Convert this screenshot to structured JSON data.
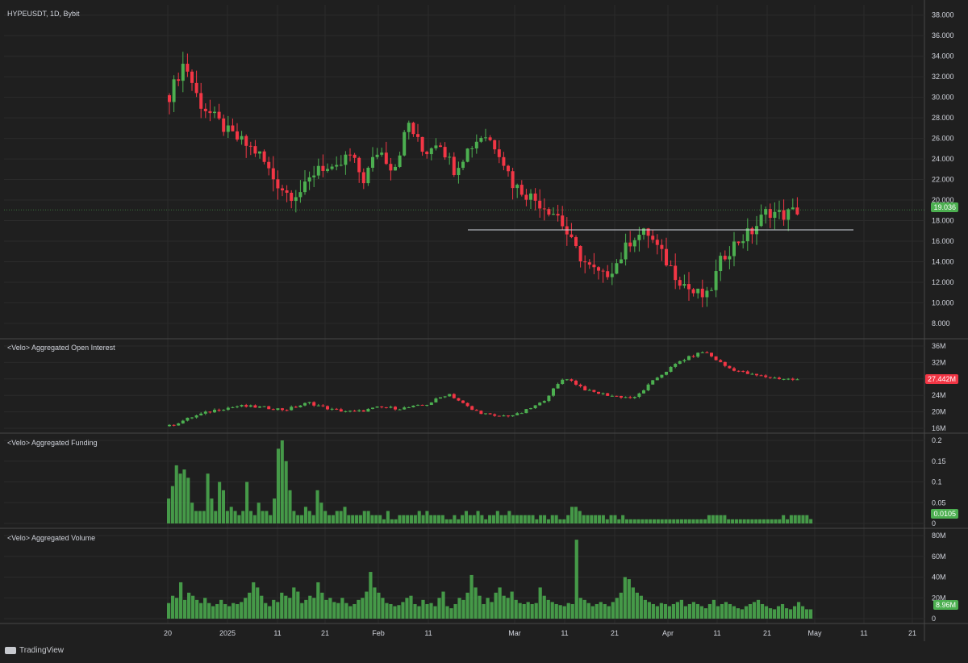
{
  "header": {
    "symbol_title": "HYPEUSDT, 1D, Bybit"
  },
  "watermark": {
    "label": "TradingView"
  },
  "colors": {
    "up": "#4caf50",
    "down": "#f23645",
    "bg": "#1f1f1f",
    "grid": "#2b2b2b",
    "text": "#d1d4dc",
    "separator": "#474747",
    "level": "#d1d4dc"
  },
  "x_axis": {
    "labels": [
      "20",
      "2025",
      "11",
      "21",
      "Feb",
      "11",
      "Mar",
      "11",
      "21",
      "Apr",
      "11",
      "21",
      "May",
      "11",
      "21"
    ]
  },
  "chart_data": [
    {
      "name": "price",
      "type": "candlestick",
      "title": "HYPEUSDT, 1D, Bybit",
      "ylim": [
        6.5,
        39.0
      ],
      "y_ticks": [
        "38.000",
        "36.000",
        "34.000",
        "32.000",
        "30.000",
        "28.000",
        "26.000",
        "24.000",
        "22.000",
        "20.000",
        "18.000",
        "16.000",
        "14.000",
        "12.000",
        "10.000",
        "8.000"
      ],
      "last_value": "19.036",
      "horizontal_level": 17.1,
      "grid": true,
      "series": [
        {
          "name": "price_anchors",
          "values": [
            30.2,
            33.5,
            29.5,
            28.0,
            26.5,
            25.5,
            24.5,
            22.0,
            20.5,
            21.0,
            23.5,
            22.5,
            24.5,
            22.0,
            25.0,
            23.0,
            27.5,
            24.5,
            26.0,
            23.0,
            25.0,
            26.5,
            25.0,
            21.5,
            20.5,
            19.5,
            18.5,
            15.5,
            13.5,
            12.5,
            14.0,
            16.5,
            16.8,
            14.5,
            12.5,
            11.0,
            10.5,
            14.5,
            16.0,
            17.0,
            19.0,
            18.5,
            19.0
          ]
        }
      ]
    },
    {
      "name": "open_interest",
      "type": "candlestick",
      "title": "<Velo> Aggregated Open Interest",
      "ylim": [
        16,
        36
      ],
      "y_ticks": [
        "36M",
        "32M",
        "28M",
        "24M",
        "20M",
        "16M"
      ],
      "last_value": "27.442M",
      "series": [
        {
          "name": "oi_anchors",
          "values": [
            17.5,
            19.5,
            21.0,
            21.8,
            21.5,
            21.0,
            22.5,
            21.0,
            20.5,
            21.5,
            21.3,
            22.0,
            24.5,
            21.0,
            19.5,
            20.0,
            22.5,
            28.0,
            25.0,
            24.0,
            23.5,
            28.0,
            31.5,
            33.5,
            30.0,
            28.5,
            27.8,
            27.4
          ]
        }
      ]
    },
    {
      "name": "funding",
      "type": "bar",
      "title": "<Velo> Aggregated Funding",
      "ylim": [
        0,
        0.2
      ],
      "y_ticks": [
        "0.2",
        "0.15",
        "0.1",
        "0.05",
        "0"
      ],
      "last_value": "0.0105",
      "series": [
        {
          "name": "funding",
          "values": [
            0.06,
            0.09,
            0.14,
            0.12,
            0.13,
            0.11,
            0.05,
            0.03,
            0.03,
            0.03,
            0.12,
            0.06,
            0.03,
            0.1,
            0.08,
            0.03,
            0.04,
            0.03,
            0.02,
            0.03,
            0.1,
            0.03,
            0.02,
            0.05,
            0.03,
            0.03,
            0.02,
            0.06,
            0.18,
            0.2,
            0.15,
            0.08,
            0.03,
            0.02,
            0.02,
            0.04,
            0.03,
            0.02,
            0.08,
            0.05,
            0.03,
            0.02,
            0.02,
            0.03,
            0.03,
            0.04,
            0.02,
            0.02,
            0.02,
            0.02,
            0.03,
            0.03,
            0.02,
            0.02,
            0.02,
            0.01,
            0.03,
            0.01,
            0.01,
            0.02,
            0.02,
            0.02,
            0.02,
            0.02,
            0.03,
            0.02,
            0.03,
            0.02,
            0.02,
            0.02,
            0.02,
            0.01,
            0.01,
            0.02,
            0.01,
            0.02,
            0.03,
            0.02,
            0.02,
            0.03,
            0.02,
            0.01,
            0.02,
            0.02,
            0.03,
            0.02,
            0.02,
            0.03,
            0.02,
            0.02,
            0.02,
            0.02,
            0.02,
            0.02,
            0.01,
            0.02,
            0.02,
            0.01,
            0.02,
            0.02,
            0.01,
            0.01,
            0.02,
            0.04,
            0.04,
            0.03,
            0.02,
            0.02,
            0.02,
            0.02,
            0.02,
            0.02,
            0.01,
            0.02,
            0.02,
            0.01,
            0.02,
            0.01,
            0.01,
            0.01,
            0.01,
            0.01,
            0.01,
            0.01,
            0.01,
            0.01,
            0.01,
            0.01,
            0.01,
            0.01,
            0.01,
            0.01,
            0.01,
            0.01,
            0.01,
            0.01,
            0.01,
            0.01,
            0.02,
            0.02,
            0.02,
            0.02,
            0.02,
            0.01,
            0.01,
            0.01,
            0.01,
            0.01,
            0.01,
            0.01,
            0.01,
            0.01,
            0.01,
            0.01,
            0.01,
            0.01,
            0.01,
            0.02,
            0.01,
            0.02,
            0.02,
            0.02,
            0.02,
            0.02,
            0.0105
          ]
        }
      ]
    },
    {
      "name": "volume",
      "type": "bar",
      "title": "<Velo> Aggregated Volume",
      "ylim": [
        0,
        80
      ],
      "y_ticks": [
        "80M",
        "60M",
        "40M",
        "20M",
        "0"
      ],
      "last_value": "8.96M",
      "series": [
        {
          "name": "volume",
          "values": [
            15,
            22,
            20,
            35,
            18,
            25,
            22,
            18,
            15,
            20,
            15,
            12,
            14,
            18,
            14,
            12,
            15,
            14,
            16,
            20,
            25,
            35,
            30,
            22,
            15,
            12,
            18,
            16,
            25,
            22,
            20,
            30,
            26,
            15,
            18,
            22,
            20,
            35,
            25,
            18,
            20,
            16,
            15,
            20,
            15,
            12,
            14,
            18,
            20,
            26,
            45,
            30,
            25,
            20,
            15,
            14,
            12,
            13,
            16,
            20,
            22,
            14,
            12,
            18,
            14,
            15,
            12,
            20,
            26,
            12,
            10,
            14,
            20,
            18,
            25,
            42,
            30,
            22,
            14,
            20,
            16,
            25,
            30,
            22,
            20,
            26,
            18,
            15,
            14,
            16,
            14,
            15,
            30,
            22,
            18,
            16,
            14,
            13,
            12,
            15,
            14,
            76,
            20,
            18,
            15,
            12,
            14,
            16,
            14,
            12,
            16,
            20,
            25,
            40,
            38,
            30,
            25,
            22,
            18,
            16,
            14,
            12,
            15,
            14,
            12,
            14,
            16,
            18,
            12,
            14,
            16,
            14,
            12,
            10,
            14,
            18,
            12,
            14,
            16,
            14,
            12,
            10,
            9,
            12,
            14,
            16,
            18,
            14,
            12,
            10,
            9,
            12,
            14,
            10,
            9,
            12,
            16,
            12,
            9,
            8.96
          ]
        }
      ]
    }
  ]
}
